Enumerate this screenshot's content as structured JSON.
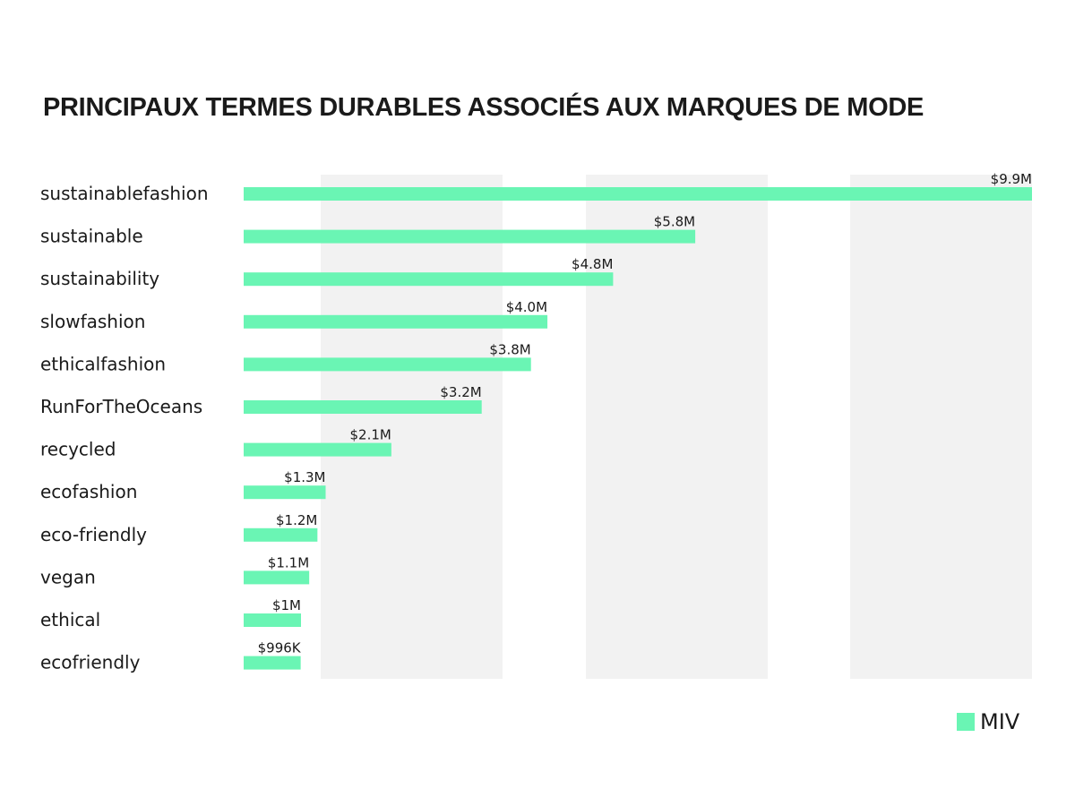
{
  "chart_data": {
    "type": "bar",
    "orientation": "horizontal",
    "title": "PRINCIPAUX TERMES DURABLES ASSOCIÉS AUX MARQUES DE MODE",
    "categories": [
      "sustainablefashion",
      "sustainable",
      "sustainability",
      "slowfashion",
      "ethicalfashion",
      "RunForTheOceans",
      "recycled",
      "ecofashion",
      "eco-friendly",
      "vegan",
      "ethical",
      "ecofriendly"
    ],
    "series": [
      {
        "name": "MIV",
        "values": [
          9.9,
          5.8,
          4.8,
          4.0,
          3.8,
          3.2,
          2.1,
          1.3,
          1.2,
          1.1,
          1.0,
          0.996
        ],
        "labels": [
          "$9.9M",
          "$5.8M",
          "$4.8M",
          "$4.0M",
          "$3.8M",
          "$3.2M",
          "$2.1M",
          "$1.3M",
          "$1.2M",
          "$1.1M",
          "$1M",
          "$996K"
        ]
      }
    ],
    "unit": "$M",
    "xlim": [
      0.3,
      9.9
    ],
    "grid": "alternating vertical bands",
    "legend": "bottom-right",
    "colors": {
      "bar": "#6af5b4",
      "band": "#f2f2f2",
      "text": "#1a1a1a"
    }
  }
}
